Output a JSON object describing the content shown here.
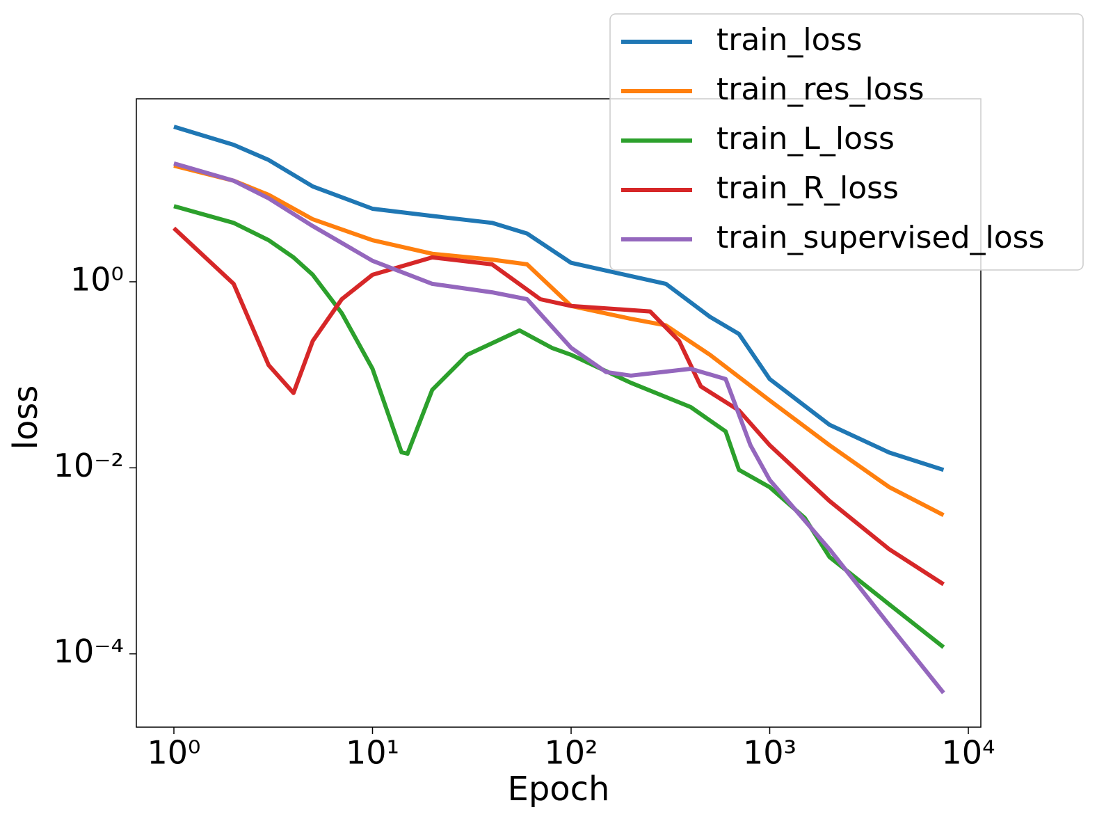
{
  "chart_data": {
    "type": "line",
    "xlabel": "Epoch",
    "ylabel": "loss",
    "xscale": "log",
    "yscale": "log",
    "grid": false,
    "legend": "upper right",
    "xlim": [
      0.647,
      11560
    ],
    "ylim": [
      1.63e-05,
      92.7
    ],
    "xticks": [
      {
        "value": 1,
        "label": "10⁰"
      },
      {
        "value": 10,
        "label": "10¹"
      },
      {
        "value": 100,
        "label": "10²"
      },
      {
        "value": 1000,
        "label": "10³"
      },
      {
        "value": 10000,
        "label": "10⁴"
      }
    ],
    "yticks": [
      {
        "value": 1,
        "label": "10⁰"
      },
      {
        "value": 0.01,
        "label": "10⁻²"
      },
      {
        "value": 0.0001,
        "label": "10⁻⁴"
      }
    ],
    "series": [
      {
        "name": "train_loss",
        "color": "#1f77b4",
        "x": [
          1,
          2,
          3,
          5,
          10,
          20,
          40,
          60,
          100,
          200,
          300,
          500,
          700,
          1000,
          2000,
          4000,
          7500
        ],
        "values": [
          46.5,
          29.7,
          20.4,
          10.6,
          6.1,
          5.1,
          4.3,
          3.3,
          1.6,
          1.15,
          0.95,
          0.42,
          0.275,
          0.09,
          0.029,
          0.0146,
          0.0095
        ]
      },
      {
        "name": "train_res_loss",
        "color": "#ff7f0e",
        "x": [
          1,
          2,
          3,
          5,
          10,
          20,
          40,
          60,
          100,
          200,
          300,
          500,
          1000,
          2000,
          4000,
          7500
        ],
        "values": [
          17.7,
          12.2,
          8.6,
          4.7,
          2.8,
          2.0,
          1.73,
          1.54,
          0.55,
          0.4,
          0.34,
          0.164,
          0.053,
          0.0175,
          0.0062,
          0.0031
        ]
      },
      {
        "name": "train_L_loss",
        "color": "#2ca02c",
        "x": [
          1,
          2,
          3,
          4,
          5,
          7,
          10,
          14,
          15,
          20,
          30,
          55,
          80,
          100,
          200,
          400,
          600,
          700,
          1000,
          1500,
          2000,
          4000,
          7500
        ],
        "values": [
          6.5,
          4.3,
          2.8,
          1.83,
          1.19,
          0.46,
          0.116,
          0.0147,
          0.0142,
          0.069,
          0.164,
          0.3,
          0.195,
          0.164,
          0.082,
          0.045,
          0.0246,
          0.0095,
          0.0062,
          0.0029,
          0.0011,
          0.00034,
          0.000118
        ]
      },
      {
        "name": "train_R_loss",
        "color": "#d62728",
        "x": [
          1,
          2,
          3,
          4,
          5,
          7,
          10,
          20,
          40,
          70,
          100,
          250,
          350,
          450,
          700,
          1000,
          2000,
          4000,
          7500
        ],
        "values": [
          3.77,
          0.95,
          0.127,
          0.0637,
          0.231,
          0.65,
          1.19,
          1.83,
          1.54,
          0.65,
          0.55,
          0.48,
          0.231,
          0.075,
          0.0414,
          0.0175,
          0.0044,
          0.00133,
          0.00056
        ]
      },
      {
        "name": "train_supervised_loss",
        "color": "#9467bd",
        "x": [
          1,
          2,
          3,
          5,
          10,
          20,
          40,
          60,
          100,
          150,
          200,
          400,
          600,
          800,
          1000,
          2000,
          4000,
          7500
        ],
        "values": [
          18.7,
          12.2,
          7.9,
          3.97,
          1.68,
          0.95,
          0.77,
          0.65,
          0.195,
          0.107,
          0.098,
          0.116,
          0.09,
          0.0175,
          0.0074,
          0.00133,
          0.000204,
          3.81e-05
        ]
      }
    ]
  }
}
